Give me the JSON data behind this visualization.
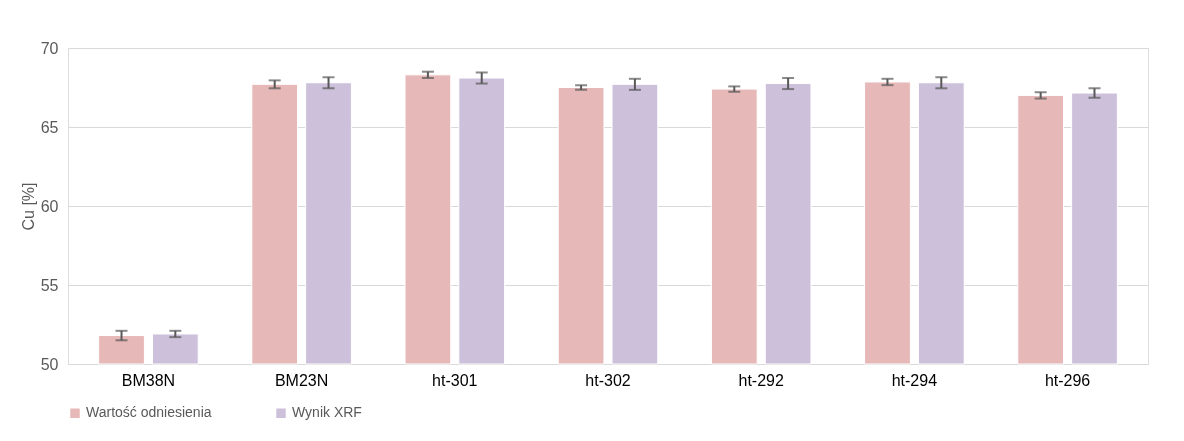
{
  "chart_data": {
    "type": "bar",
    "ylabel": "Cu [%]",
    "categories": [
      "BM38N",
      "BM23N",
      "ht-301",
      "ht-302",
      "ht-292",
      "ht-294",
      "ht-296"
    ],
    "series": [
      {
        "name": "Wartość odniesienia",
        "color": "#e6b8b7",
        "values": [
          51.8,
          67.7,
          68.3,
          67.5,
          67.4,
          67.85,
          67.0
        ],
        "errors": [
          0.3,
          0.25,
          0.2,
          0.15,
          0.17,
          0.2,
          0.2
        ]
      },
      {
        "name": "Wynik XRF",
        "color": "#ccc0da",
        "values": [
          51.9,
          67.8,
          68.1,
          67.7,
          67.75,
          67.8,
          67.15
        ],
        "errors": [
          0.2,
          0.35,
          0.35,
          0.35,
          0.35,
          0.35,
          0.3
        ]
      }
    ],
    "ylim": [
      50,
      70
    ],
    "yticks": [
      50,
      55,
      60,
      65,
      70
    ],
    "grid": "y",
    "legend": "bottom"
  }
}
